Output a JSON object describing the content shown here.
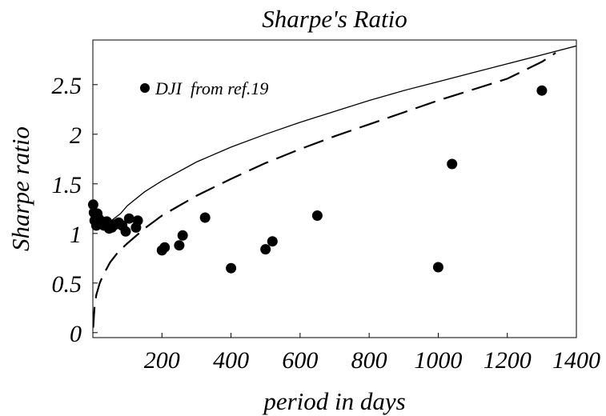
{
  "chart_data": {
    "type": "scatter",
    "title": "Sharpe's Ratio",
    "xlabel": "period in days",
    "ylabel": "Sharpe ratio",
    "xlim": [
      0,
      1400
    ],
    "ylim": [
      -0.05,
      2.95
    ],
    "x_ticks": [
      200,
      400,
      600,
      800,
      1000,
      1200,
      1400
    ],
    "y_ticks": [
      0,
      0.5,
      1,
      1.5,
      2,
      2.5
    ],
    "y_tick_labels": [
      "0",
      "0.5",
      "1",
      "1.5",
      "2",
      "2.5"
    ],
    "grid": false,
    "legend_position": "top-left",
    "series": [
      {
        "name": "DJI  from ref.19",
        "kind": "scatter",
        "color": "#000000",
        "points": [
          [
            1,
            1.29
          ],
          [
            3,
            1.21
          ],
          [
            5,
            1.13
          ],
          [
            8,
            1.18
          ],
          [
            10,
            1.08
          ],
          [
            13,
            1.2
          ],
          [
            17,
            1.15
          ],
          [
            22,
            1.1
          ],
          [
            27,
            1.12
          ],
          [
            32,
            1.08
          ],
          [
            40,
            1.12
          ],
          [
            47,
            1.05
          ],
          [
            55,
            1.06
          ],
          [
            65,
            1.09
          ],
          [
            75,
            1.11
          ],
          [
            85,
            1.08
          ],
          [
            95,
            1.02
          ],
          [
            105,
            1.15
          ],
          [
            125,
            1.06
          ],
          [
            130,
            1.13
          ],
          [
            200,
            0.83
          ],
          [
            208,
            0.86
          ],
          [
            250,
            0.88
          ],
          [
            260,
            0.98
          ],
          [
            325,
            1.16
          ],
          [
            400,
            0.65
          ],
          [
            500,
            0.84
          ],
          [
            520,
            0.92
          ],
          [
            650,
            1.18
          ],
          [
            1000,
            0.66
          ],
          [
            1040,
            1.7
          ],
          [
            1300,
            2.44
          ]
        ]
      },
      {
        "kind": "line",
        "style": "solid",
        "color": "#000000",
        "points": [
          [
            50,
            1.12
          ],
          [
            80,
            1.2
          ],
          [
            100,
            1.28
          ],
          [
            150,
            1.42
          ],
          [
            200,
            1.53
          ],
          [
            300,
            1.72
          ],
          [
            400,
            1.87
          ],
          [
            500,
            2.0
          ],
          [
            600,
            2.12
          ],
          [
            700,
            2.23
          ],
          [
            800,
            2.34
          ],
          [
            900,
            2.44
          ],
          [
            1000,
            2.53
          ],
          [
            1100,
            2.62
          ],
          [
            1200,
            2.71
          ],
          [
            1300,
            2.8
          ],
          [
            1400,
            2.89
          ]
        ]
      },
      {
        "kind": "line",
        "style": "dashed",
        "color": "#000000",
        "points": [
          [
            1,
            0.05
          ],
          [
            5,
            0.27
          ],
          [
            10,
            0.38
          ],
          [
            20,
            0.5
          ],
          [
            30,
            0.58
          ],
          [
            50,
            0.71
          ],
          [
            75,
            0.82
          ],
          [
            100,
            0.9
          ],
          [
            150,
            1.05
          ],
          [
            200,
            1.18
          ],
          [
            300,
            1.38
          ],
          [
            400,
            1.55
          ],
          [
            500,
            1.71
          ],
          [
            600,
            1.85
          ],
          [
            700,
            1.98
          ],
          [
            800,
            2.1
          ],
          [
            900,
            2.22
          ],
          [
            1000,
            2.34
          ],
          [
            1100,
            2.45
          ],
          [
            1200,
            2.56
          ],
          [
            1300,
            2.73
          ],
          [
            1340,
            2.82
          ]
        ]
      }
    ]
  }
}
